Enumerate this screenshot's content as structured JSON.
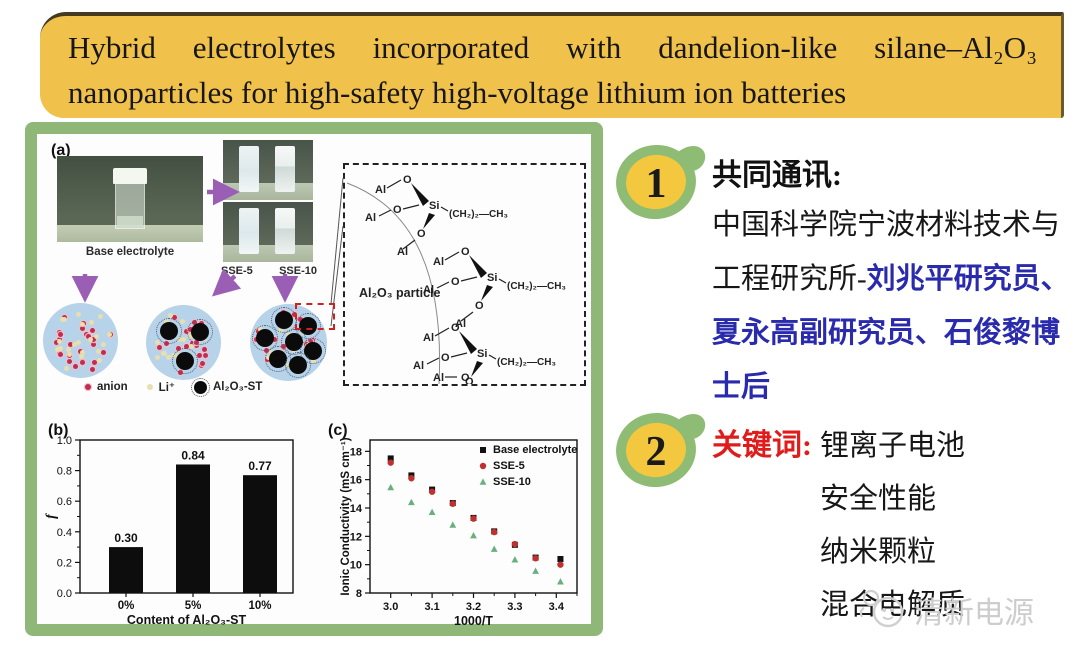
{
  "title_banner": {
    "bg_color": "#f0c14b",
    "line1": "Hybrid electrolytes incorporated with dandelion-like silane–Al₂O₃",
    "line2": "nanoparticles for high-safety high-voltage lithium ion batteries"
  },
  "figure": {
    "border_color": "#8fb878",
    "panel_a": {
      "label": "(a)",
      "photo1_caption": "Base electrolyte",
      "photo2_captions": [
        "SSE-5",
        "SSE-10"
      ],
      "legend": {
        "anion": "anion",
        "li": "Li⁺",
        "al2o3": "Al₂O₃-ST"
      },
      "structure": {
        "label": "Al₂O₃  particle",
        "al": "Al",
        "o": "O",
        "si": "Si",
        "chain": "(CH₂)₂—CH₃"
      }
    },
    "panel_b_label": "(b)",
    "panel_c_label": "(c)"
  },
  "chart_data": [
    {
      "type": "bar",
      "panel": "b",
      "categories": [
        "0%",
        "5%",
        "10%"
      ],
      "values": [
        0.3,
        0.84,
        0.77
      ],
      "bar_labels": [
        "0.30",
        "0.84",
        "0.77"
      ],
      "title": "",
      "xlabel": "Content of Al₂O₃-ST",
      "ylabel": "f",
      "ylim": [
        0.0,
        1.0
      ],
      "yticks": [
        0.0,
        0.2,
        0.4,
        0.6,
        0.8,
        1.0
      ],
      "bar_color": "#0d0d0d",
      "grid": false
    },
    {
      "type": "scatter",
      "panel": "c",
      "x": [
        3.0,
        3.05,
        3.1,
        3.15,
        3.2,
        3.25,
        3.3,
        3.35,
        3.41
      ],
      "series": [
        {
          "name": "Base electrolyte",
          "marker": "square",
          "color": "#111111",
          "values": [
            17.5,
            16.3,
            15.3,
            14.35,
            13.3,
            12.35,
            11.4,
            10.5,
            10.4
          ]
        },
        {
          "name": "SSE-5",
          "marker": "circle",
          "color": "#c03030",
          "values": [
            17.2,
            16.1,
            15.15,
            14.3,
            13.25,
            12.3,
            11.45,
            10.45,
            10.0
          ]
        },
        {
          "name": "SSE-10",
          "marker": "triangle",
          "color": "#6ab07e",
          "values": [
            15.45,
            14.4,
            13.7,
            12.8,
            12.05,
            11.1,
            10.35,
            9.55,
            8.8
          ]
        }
      ],
      "xlabel": "1000/T",
      "ylabel": "Ionic Conductivity (mS cm⁻¹)",
      "xlim": [
        2.95,
        3.45
      ],
      "ylim": [
        8,
        18
      ],
      "xticks": [
        3.0,
        3.1,
        3.2,
        3.3,
        3.4
      ],
      "yticks": [
        8,
        10,
        12,
        14,
        16,
        18
      ],
      "legend_position": "top-right",
      "grid": false
    }
  ],
  "authors_block": {
    "badge": "1",
    "heading": "共同通讯:",
    "affiliation_black": "中国科学院宁波材料技术与工程研究所-",
    "names_blue": "刘兆平研究员、夏永高副研究员、石俊黎博士后",
    "name_color": "#2a2aad"
  },
  "keywords_block": {
    "badge": "2",
    "heading": "关键词:",
    "heading_color": "#e01b1b",
    "keywords": [
      "锂离子电池",
      "安全性能",
      "纳米颗粒",
      "混合电解质"
    ]
  },
  "watermark": {
    "text": "清新电源",
    "color": "#cdcdcd"
  },
  "badge_colors": {
    "outer": "#8fbc74",
    "inner": "#f4c83e"
  }
}
